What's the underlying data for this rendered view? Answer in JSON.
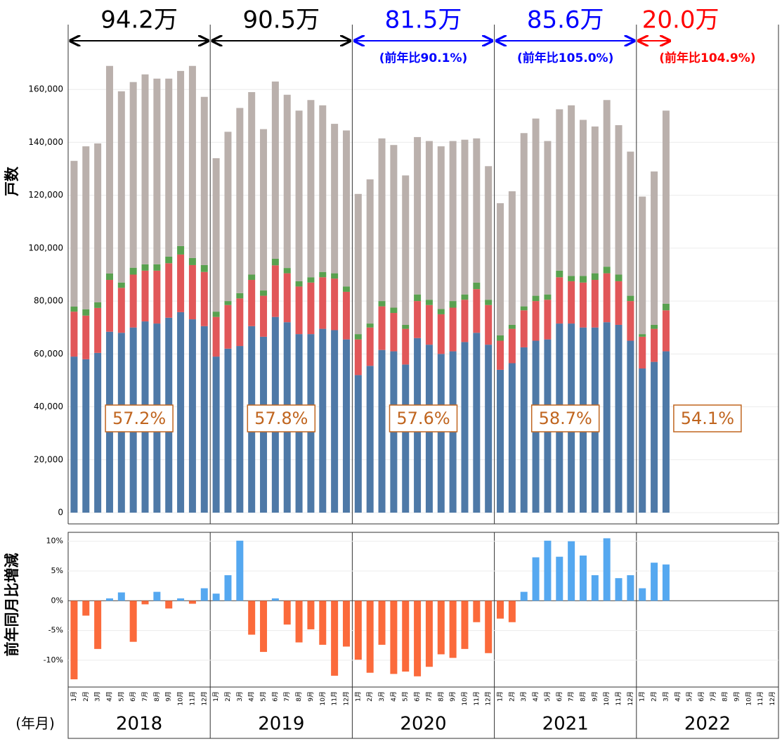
{
  "chart_data": [
    {
      "type": "stacked-bar",
      "y_label": "戸数",
      "x_label": "(年月)",
      "groups": [
        "2018",
        "2019",
        "2020",
        "2021",
        "2022"
      ],
      "categories": [
        "1月",
        "2月",
        "3月",
        "4月",
        "5月",
        "6月",
        "7月",
        "8月",
        "9月",
        "10月",
        "11月",
        "12月",
        "1月",
        "2月",
        "3月",
        "4月",
        "5月",
        "6月",
        "7月",
        "8月",
        "9月",
        "10月",
        "11月",
        "12月",
        "1月",
        "2月",
        "3月",
        "4月",
        "5月",
        "6月",
        "7月",
        "8月",
        "9月",
        "10月",
        "11月",
        "12月",
        "1月",
        "2月",
        "3月",
        "4月",
        "5月",
        "6月",
        "7月",
        "8月",
        "9月",
        "10月",
        "11月",
        "12月",
        "1月",
        "2月",
        "3月",
        "4月",
        "5月",
        "6月",
        "7月",
        "8月",
        "9月",
        "10月",
        "11月",
        "12月"
      ],
      "series": [
        {
          "color": "#4e79a7",
          "values": [
            59000,
            58000,
            60400,
            68400,
            68000,
            70000,
            72300,
            71500,
            73700,
            75800,
            73100,
            70500,
            59000,
            62000,
            63000,
            70500,
            66500,
            74000,
            72000,
            67500,
            67500,
            69500,
            69000,
            65500,
            52000,
            55500,
            61500,
            61000,
            56000,
            66000,
            63500,
            60000,
            61000,
            64500,
            68000,
            63500,
            54000,
            56500,
            62500,
            65000,
            65500,
            71500,
            71500,
            70000,
            70000,
            72000,
            71000,
            65000,
            54500,
            57000,
            61000,
            null,
            null,
            null,
            null,
            null,
            null,
            null,
            null,
            null
          ]
        },
        {
          "color": "#e15759",
          "values": [
            17000,
            16500,
            17000,
            19600,
            17000,
            20000,
            19200,
            20000,
            20600,
            21800,
            20500,
            20500,
            15000,
            16500,
            18000,
            17500,
            15500,
            19500,
            18500,
            18000,
            19500,
            19500,
            19500,
            18000,
            13500,
            14500,
            16500,
            14500,
            13500,
            14000,
            15000,
            15000,
            16500,
            16000,
            16500,
            15000,
            11000,
            13000,
            14000,
            15000,
            15000,
            17500,
            16000,
            17000,
            18000,
            18500,
            16500,
            15000,
            12000,
            12500,
            15500,
            null,
            null,
            null,
            null,
            null,
            null,
            null,
            null,
            null
          ]
        },
        {
          "color": "#59a14f",
          "values": [
            1900,
            2400,
            2100,
            2400,
            2000,
            2600,
            2400,
            2400,
            2500,
            3200,
            2700,
            2600,
            2000,
            1500,
            2000,
            2000,
            2000,
            2500,
            2000,
            2000,
            2000,
            2000,
            2000,
            2000,
            2000,
            1500,
            2000,
            2000,
            1500,
            2500,
            2000,
            2000,
            2500,
            2000,
            2500,
            2000,
            2000,
            1500,
            1500,
            2000,
            2000,
            2500,
            2000,
            2500,
            2500,
            2500,
            2500,
            2000,
            1000,
            1500,
            2500,
            null,
            null,
            null,
            null,
            null,
            null,
            null,
            null,
            null
          ]
        },
        {
          "color": "#bab0ac",
          "values": [
            55100,
            61600,
            60100,
            78500,
            72300,
            70200,
            71800,
            70200,
            67300,
            66200,
            72600,
            63600,
            58000,
            64000,
            70000,
            69000,
            61000,
            67000,
            65500,
            64500,
            67000,
            63000,
            56500,
            59000,
            53000,
            54500,
            61500,
            61500,
            56500,
            59500,
            60000,
            61500,
            60500,
            58500,
            54500,
            50500,
            50000,
            50500,
            65500,
            67000,
            58000,
            61000,
            64500,
            59000,
            55500,
            63000,
            56500,
            54500,
            52000,
            58000,
            73000,
            null,
            null,
            null,
            null,
            null,
            null,
            null,
            null,
            null
          ]
        }
      ],
      "ylim": [
        0,
        170000
      ],
      "yticks": [
        {
          "value": 0,
          "label": "0"
        },
        {
          "value": 20000,
          "label": "20,000"
        },
        {
          "value": 40000,
          "label": "40,000"
        },
        {
          "value": 60000,
          "label": "60,000"
        },
        {
          "value": 80000,
          "label": "80,000"
        },
        {
          "value": 100000,
          "label": "100,000"
        },
        {
          "value": 120000,
          "label": "120,000"
        },
        {
          "value": 140000,
          "label": "140,000"
        },
        {
          "value": 160000,
          "label": "160,000"
        }
      ],
      "grid": true,
      "year_annotations": [
        {
          "total": "94.2万",
          "share": "57.2%",
          "color": "#000000"
        },
        {
          "total": "90.5万",
          "share": "57.8%",
          "color": "#000000"
        },
        {
          "total": "81.5万",
          "yoy": "(前年比90.1%)",
          "share": "57.6%",
          "color": "#0000ff"
        },
        {
          "total": "85.6万",
          "yoy": "(前年比105.0%)",
          "share": "58.7%",
          "color": "#0000ff"
        },
        {
          "total": "20.0万",
          "yoy": "(前年比104.9%)",
          "share": "54.1%",
          "color": "#ff0000"
        }
      ]
    },
    {
      "type": "bar",
      "y_label": "前年同月比増減",
      "values": [
        -13.2,
        -2.5,
        -8.1,
        0.4,
        1.4,
        -6.9,
        -0.6,
        1.5,
        -1.3,
        0.4,
        -0.5,
        2.1,
        1.2,
        4.3,
        10.1,
        -5.7,
        -8.6,
        0.4,
        -4.0,
        -7.0,
        -4.8,
        -7.4,
        -12.6,
        -7.7,
        -9.9,
        -12.1,
        -7.4,
        -12.3,
        -11.9,
        -12.7,
        -11.1,
        -9.0,
        -9.6,
        -8.1,
        -3.6,
        -8.8,
        -3.0,
        -3.6,
        1.5,
        7.3,
        10.1,
        7.4,
        10.0,
        7.6,
        4.3,
        10.5,
        3.8,
        4.3,
        2.1,
        6.4,
        6.1,
        null,
        null,
        null,
        null,
        null,
        null,
        null,
        null,
        null
      ],
      "positive_color": "#55a8f0",
      "negative_color": "#fb6a3b",
      "ylim": [
        -14.5,
        11.5
      ],
      "yticks": [
        {
          "value": -10,
          "label": "-10%"
        },
        {
          "value": -5,
          "label": "-5%"
        },
        {
          "value": 0,
          "label": "0%"
        },
        {
          "value": 5,
          "label": "5%"
        },
        {
          "value": 10,
          "label": "10%"
        }
      ],
      "grid": true
    }
  ]
}
